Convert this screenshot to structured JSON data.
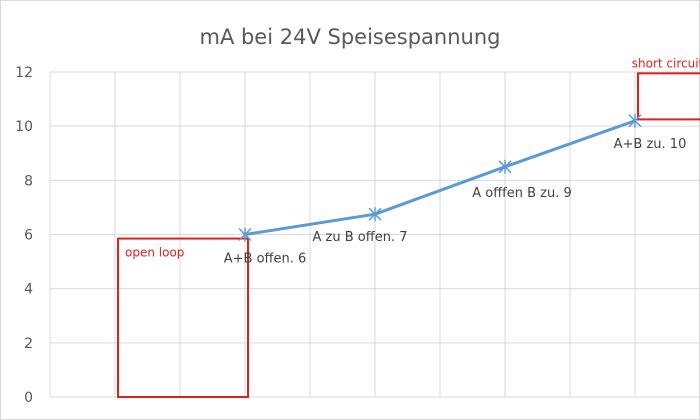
{
  "chart_data": {
    "type": "line",
    "title": "mA bei 24V Speisespannung",
    "xlabel": "",
    "ylabel": "",
    "x_categories": 9,
    "ylim": [
      0,
      12
    ],
    "yticks": [
      0,
      2,
      4,
      6,
      8,
      10,
      12
    ],
    "grid": true,
    "legend": "none",
    "series": [
      {
        "color": "#5b9bd5",
        "marker": "x",
        "points": [
          {
            "x": 3,
            "y": 6,
            "label": "A+B offen. 6"
          },
          {
            "x": 5,
            "y": 6.75,
            "label": "A zu B offen. 7"
          },
          {
            "x": 7,
            "y": 8.5,
            "label": "A offfen B zu. 9"
          },
          {
            "x": 9,
            "y": 10.2,
            "label": "A+B zu. 10"
          }
        ]
      }
    ],
    "annotations": [
      {
        "text": "open loop",
        "color": "#e02020",
        "x_range": [
          1,
          3
        ],
        "y_range": [
          0,
          5.85
        ]
      },
      {
        "text": "short circuit",
        "color": "#e02020",
        "x_range": [
          9,
          10
        ],
        "y_range": [
          10.25,
          11.95
        ]
      }
    ]
  }
}
